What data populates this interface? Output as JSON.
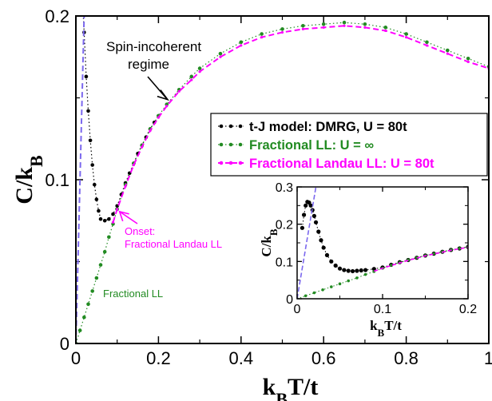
{
  "chart_data": [
    {
      "type": "line",
      "xlabel": "k_BT/t",
      "ylabel": "C/k_B",
      "xlim": [
        0,
        1
      ],
      "ylim": [
        0,
        0.2
      ],
      "x_ticks": [
        "0",
        "0.2",
        "0.4",
        "0.6",
        "0.8",
        "1"
      ],
      "y_ticks": [
        "0",
        "0.1",
        "0.2"
      ],
      "legend_position": "right",
      "series": [
        {
          "name": "t-J model: DMRG, U = 80t",
          "color": "#000000",
          "style": "dotted-markers",
          "x": [
            0.012,
            0.016,
            0.02,
            0.025,
            0.03,
            0.035,
            0.04,
            0.045,
            0.05,
            0.055,
            0.06,
            0.07,
            0.08,
            0.09,
            0.1,
            0.11,
            0.12,
            0.13,
            0.14,
            0.15,
            0.16,
            0.17,
            0.18,
            0.19,
            0.2
          ],
          "y": [
            0.245,
            0.21,
            0.19,
            0.163,
            0.142,
            0.124,
            0.109,
            0.097,
            0.088,
            0.081,
            0.076,
            0.075,
            0.076,
            0.079,
            0.084,
            0.091,
            0.098,
            0.104,
            0.11,
            0.116,
            0.121,
            0.126,
            0.131,
            0.135,
            0.139
          ]
        },
        {
          "name": "Fractional LL: U = ∞",
          "color": "#228b22",
          "style": "dotted-markers",
          "x": [
            0,
            0.01,
            0.02,
            0.03,
            0.04,
            0.05,
            0.06,
            0.07,
            0.08,
            0.09,
            0.1,
            0.12,
            0.14,
            0.16,
            0.18,
            0.2,
            0.22,
            0.25,
            0.28,
            0.3,
            0.35,
            0.4,
            0.45,
            0.5,
            0.55,
            0.6,
            0.65,
            0.7,
            0.75,
            0.8,
            0.85,
            0.9,
            0.95,
            1.0
          ],
          "y": [
            0.0,
            0.008,
            0.016,
            0.024,
            0.032,
            0.04,
            0.048,
            0.056,
            0.065,
            0.073,
            0.082,
            0.097,
            0.11,
            0.121,
            0.131,
            0.139,
            0.146,
            0.155,
            0.163,
            0.168,
            0.177,
            0.184,
            0.189,
            0.192,
            0.194,
            0.195,
            0.196,
            0.195,
            0.193,
            0.189,
            0.184,
            0.179,
            0.174,
            0.169
          ]
        },
        {
          "name": "Fractional Landau LL: U = 80t",
          "color": "#ff00ff",
          "style": "dashed",
          "x": [
            0.09,
            0.1,
            0.12,
            0.14,
            0.16,
            0.18,
            0.2,
            0.22,
            0.25,
            0.28,
            0.3,
            0.35,
            0.4,
            0.45,
            0.5,
            0.55,
            0.6,
            0.65,
            0.7,
            0.75,
            0.8,
            0.85,
            0.9,
            0.95,
            1.0
          ],
          "y": [
            0.074,
            0.082,
            0.096,
            0.109,
            0.12,
            0.13,
            0.138,
            0.145,
            0.154,
            0.161,
            0.166,
            0.175,
            0.182,
            0.187,
            0.19,
            0.192,
            0.193,
            0.194,
            0.193,
            0.191,
            0.187,
            0.182,
            0.177,
            0.172,
            0.168
          ]
        },
        {
          "name": "",
          "color": "#7b68ee",
          "style": "dashed-line",
          "x": [
            0,
            0.02
          ],
          "y": [
            0,
            0.2
          ]
        }
      ],
      "annotations": [
        {
          "text_lines": [
            "Spin-incoherent",
            "regime"
          ],
          "x": 0.23,
          "y": 0.148
        },
        {
          "text_lines": [
            "Onset:",
            "Fractional Landau LL"
          ],
          "x": 0.1,
          "y": 0.082,
          "color": "#ff00ff"
        },
        {
          "text_lines": [
            "Fractional LL"
          ],
          "color": "#228b22"
        }
      ]
    },
    {
      "type": "line",
      "xlabel": "k_BT/t",
      "ylabel": "C/k_B",
      "xlim": [
        0,
        0.2
      ],
      "ylim": [
        0,
        0.3
      ],
      "x_ticks": [
        "0",
        "0.1",
        "0.2"
      ],
      "y_ticks": [
        "0",
        "0.1",
        "0.2",
        "0.3"
      ],
      "series": [
        {
          "name": "t-J model: DMRG, U = 80t",
          "color": "#000000",
          "x": [
            0.006,
            0.008,
            0.01,
            0.012,
            0.014,
            0.016,
            0.018,
            0.02,
            0.022,
            0.025,
            0.028,
            0.031,
            0.035,
            0.04,
            0.045,
            0.05,
            0.055,
            0.06,
            0.065,
            0.07,
            0.075,
            0.08,
            0.09,
            0.1,
            0.11,
            0.12,
            0.13,
            0.14,
            0.15,
            0.16,
            0.17,
            0.18,
            0.19,
            0.2
          ],
          "y": [
            0.19,
            0.225,
            0.25,
            0.26,
            0.258,
            0.25,
            0.238,
            0.222,
            0.205,
            0.18,
            0.157,
            0.137,
            0.117,
            0.1,
            0.089,
            0.081,
            0.077,
            0.075,
            0.074,
            0.075,
            0.076,
            0.077,
            0.08,
            0.084,
            0.091,
            0.098,
            0.104,
            0.11,
            0.116,
            0.121,
            0.126,
            0.131,
            0.135,
            0.139
          ]
        },
        {
          "name": "Fractional LL: U = ∞",
          "color": "#228b22",
          "x": [
            0,
            0.01,
            0.02,
            0.03,
            0.04,
            0.05,
            0.06,
            0.07,
            0.08,
            0.09,
            0.1,
            0.11,
            0.12,
            0.13,
            0.14,
            0.15,
            0.16,
            0.17,
            0.18,
            0.19,
            0.2
          ],
          "y": [
            0.0,
            0.008,
            0.016,
            0.024,
            0.032,
            0.04,
            0.048,
            0.056,
            0.065,
            0.073,
            0.082,
            0.09,
            0.097,
            0.104,
            0.11,
            0.116,
            0.121,
            0.126,
            0.131,
            0.135,
            0.139
          ]
        },
        {
          "name": "Fractional Landau LL: U = 80t",
          "color": "#ff00ff",
          "x": [
            0.09,
            0.1,
            0.11,
            0.12,
            0.13,
            0.14,
            0.15,
            0.16,
            0.17,
            0.18,
            0.19,
            0.2
          ],
          "y": [
            0.074,
            0.082,
            0.089,
            0.096,
            0.103,
            0.109,
            0.115,
            0.12,
            0.125,
            0.13,
            0.134,
            0.138
          ]
        },
        {
          "name": "",
          "color": "#7b68ee",
          "x": [
            0,
            0.022
          ],
          "y": [
            0,
            0.3
          ]
        }
      ]
    }
  ]
}
